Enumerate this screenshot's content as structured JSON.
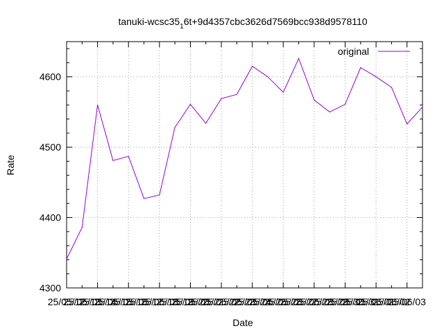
{
  "chart_data": {
    "type": "line",
    "title": "tanuki-wcsc35_1 6t+9d4357cbc3626d7569bcc938d9578110",
    "title_main": "tanuki-wcsc35",
    "title_subscript": "1",
    "title_rest": "6t+9d4357cbc3626d7569bcc938d9578110",
    "xlabel": "Date",
    "ylabel": "Rate",
    "ylim": [
      4300,
      4650
    ],
    "yticks": [
      4300,
      4400,
      4500,
      4600
    ],
    "x_ticks": [
      {
        "at": 0,
        "label": "25/05/12"
      },
      {
        "at": 1,
        "label": "25/05/13"
      },
      {
        "at": 2,
        "label": "25/05/14"
      },
      {
        "at": 3,
        "label": "25/05/15"
      },
      {
        "at": 4,
        "label": "25/05/16"
      },
      {
        "at": 5,
        "label": "25/05/17"
      },
      {
        "at": 6,
        "label": "25/05/18"
      },
      {
        "at": 7,
        "label": "25/05/19"
      },
      {
        "at": 8,
        "label": "25/05/20"
      },
      {
        "at": 9,
        "label": "25/05/21"
      },
      {
        "at": 10,
        "label": "25/05/22"
      },
      {
        "at": 11,
        "label": "25/05/23"
      },
      {
        "at": 12,
        "label": "25/05/24"
      },
      {
        "at": 13,
        "label": "25/05/25"
      },
      {
        "at": 14,
        "label": "25/05/26"
      },
      {
        "at": 15,
        "label": "25/05/27"
      },
      {
        "at": 16,
        "label": "25/05/28"
      },
      {
        "at": 17,
        "label": "25/05/29"
      },
      {
        "at": 18,
        "label": "25/05/30"
      },
      {
        "at": 19,
        "label": "25/05/31"
      },
      {
        "at": 20,
        "label": "25/06/01"
      },
      {
        "at": 21,
        "label": "25/06/02"
      },
      {
        "at": 22,
        "label": "25/06/03"
      }
    ],
    "xlim": [
      0,
      23
    ],
    "grid": true,
    "legend": "top-right",
    "series": [
      {
        "name": "original",
        "color": "#9400d3",
        "x": [
          0,
          1,
          2,
          3,
          4,
          5,
          6,
          7,
          8,
          9,
          10,
          11,
          12,
          13,
          14,
          15,
          16,
          17,
          18,
          19,
          20,
          21,
          22,
          23
        ],
        "values": [
          4341,
          4386,
          4560,
          4481,
          4487,
          4427,
          4432,
          4528,
          4561,
          4534,
          4569,
          4575,
          4615,
          4600,
          4578,
          4626,
          4567,
          4550,
          4561,
          4613,
          4600,
          4585,
          4533,
          4557
        ]
      }
    ]
  }
}
